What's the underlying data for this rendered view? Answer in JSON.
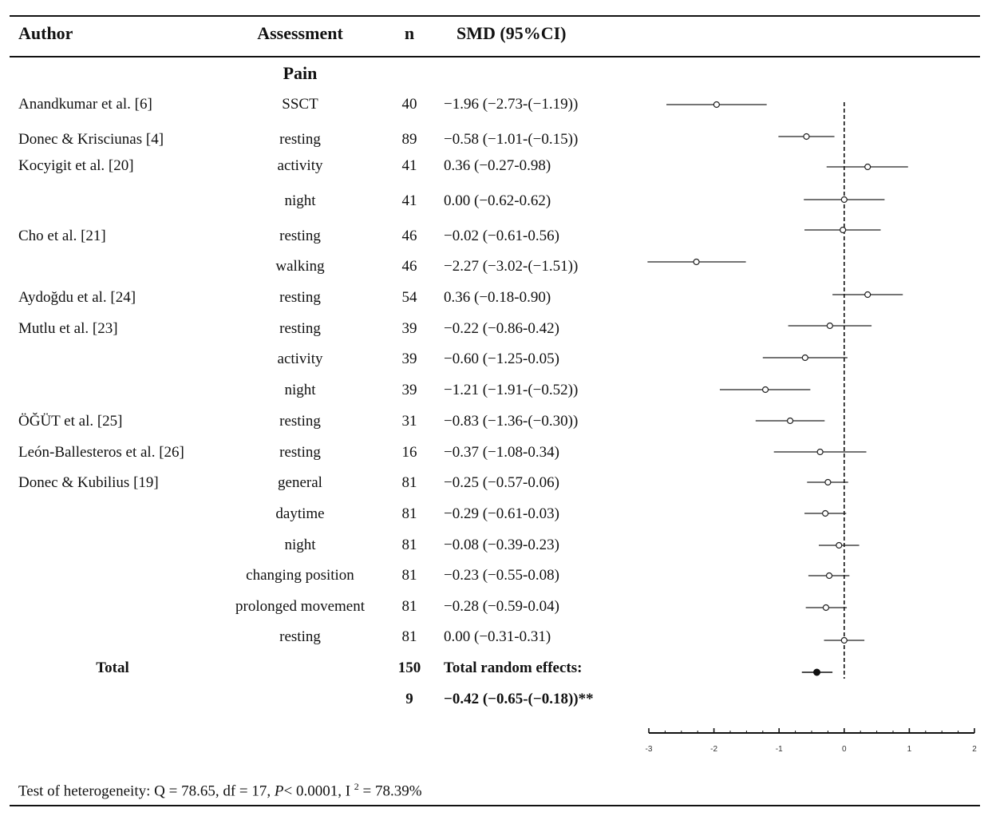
{
  "headers": {
    "author": "Author",
    "assessment": "Assessment",
    "n": "n",
    "smd": "SMD (95%CI)"
  },
  "section_label": "Pain",
  "rows": [
    {
      "author": "Anandkumar et al. [6]",
      "assessment": "SSCT",
      "n": "40",
      "smd_text": "−1.96 (−2.73-(−1.19))"
    },
    {
      "author": "Donec & Krisciunas [4]",
      "assessment": "resting",
      "n": "89",
      "smd_text": "−0.58 (−1.01-(−0.15))"
    },
    {
      "author": "Kocyigit et al. [20]",
      "assessment": "activity",
      "n": "41",
      "smd_text": "0.36 (−0.27-0.98)"
    },
    {
      "author": "",
      "assessment": "night",
      "n": "41",
      "smd_text": "0.00 (−0.62-0.62)"
    },
    {
      "author": "Cho et al. [21]",
      "assessment": "resting",
      "n": "46",
      "smd_text": "−0.02 (−0.61-0.56)"
    },
    {
      "author": "",
      "assessment": "walking",
      "n": "46",
      "smd_text": "−2.27 (−3.02-(−1.51))"
    },
    {
      "author": "Aydoğdu et al. [24]",
      "assessment": "resting",
      "n": "54",
      "smd_text": "0.36 (−0.18-0.90)"
    },
    {
      "author": "Mutlu et al. [23]",
      "assessment": "resting",
      "n": "39",
      "smd_text": "−0.22 (−0.86-0.42)"
    },
    {
      "author": "",
      "assessment": "activity",
      "n": "39",
      "smd_text": "−0.60 (−1.25-0.05)"
    },
    {
      "author": "",
      "assessment": "night",
      "n": "39",
      "smd_text": "−1.21 (−1.91-(−0.52))"
    },
    {
      "author": "ÖĞÜT et al. [25]",
      "assessment": "resting",
      "n": "31",
      "smd_text": "−0.83 (−1.36-(−0.30))"
    },
    {
      "author": "León-Ballesteros et al. [26]",
      "assessment": "resting",
      "n": "16",
      "smd_text": "−0.37 (−1.08-0.34)"
    },
    {
      "author": "Donec & Kubilius [19]",
      "assessment": "general",
      "n": "81",
      "smd_text": "−0.25 (−0.57-0.06)"
    },
    {
      "author": "",
      "assessment": "daytime",
      "n": "81",
      "smd_text": "−0.29 (−0.61-0.03)"
    },
    {
      "author": "",
      "assessment": "night",
      "n": "81",
      "smd_text": "−0.08 (−0.39-0.23)"
    },
    {
      "author": "",
      "assessment": "changing position",
      "n": "81",
      "smd_text": "−0.23 (−0.55-0.08)"
    },
    {
      "author": "",
      "assessment": "prolonged movement",
      "n": "81",
      "smd_text": "−0.28 (−0.59-0.04)"
    },
    {
      "author": "",
      "assessment": "resting",
      "n": "81",
      "smd_text": "0.00 (−0.31-0.31)"
    }
  ],
  "total": {
    "label": "Total",
    "n1": "150",
    "n2": "9",
    "effects_label": "Total random effects:",
    "smd_text": "−0.42 (−0.65-(−0.18))**"
  },
  "footer": {
    "prefix": "Test of heterogeneity: Q = 78.65, df = 17, ",
    "p_symbol": "P",
    "p_rest": "< 0.0001, I ",
    "sup": "2",
    "i2_rest": " = 78.39%"
  },
  "chart_data": {
    "type": "forest",
    "title": "",
    "xlim": [
      -3,
      2
    ],
    "x_ticks": [
      "-3",
      "-2",
      "-1",
      "0",
      "1",
      "2"
    ],
    "reference_line": 0,
    "points": [
      {
        "est": -1.96,
        "lo": -2.73,
        "hi": -1.19
      },
      {
        "est": -0.58,
        "lo": -1.01,
        "hi": -0.15
      },
      {
        "est": 0.36,
        "lo": -0.27,
        "hi": 0.98
      },
      {
        "est": 0.0,
        "lo": -0.62,
        "hi": 0.62
      },
      {
        "est": -0.02,
        "lo": -0.61,
        "hi": 0.56
      },
      {
        "est": -2.27,
        "lo": -3.02,
        "hi": -1.51
      },
      {
        "est": 0.36,
        "lo": -0.18,
        "hi": 0.9
      },
      {
        "est": -0.22,
        "lo": -0.86,
        "hi": 0.42
      },
      {
        "est": -0.6,
        "lo": -1.25,
        "hi": 0.05
      },
      {
        "est": -1.21,
        "lo": -1.91,
        "hi": -0.52
      },
      {
        "est": -0.83,
        "lo": -1.36,
        "hi": -0.3
      },
      {
        "est": -0.37,
        "lo": -1.08,
        "hi": 0.34
      },
      {
        "est": -0.25,
        "lo": -0.57,
        "hi": 0.06
      },
      {
        "est": -0.29,
        "lo": -0.61,
        "hi": 0.03
      },
      {
        "est": -0.08,
        "lo": -0.39,
        "hi": 0.23
      },
      {
        "est": -0.23,
        "lo": -0.55,
        "hi": 0.08
      },
      {
        "est": -0.28,
        "lo": -0.59,
        "hi": 0.04
      },
      {
        "est": 0.0,
        "lo": -0.31,
        "hi": 0.31
      }
    ],
    "summary": {
      "est": -0.42,
      "lo": -0.65,
      "hi": -0.18
    }
  }
}
